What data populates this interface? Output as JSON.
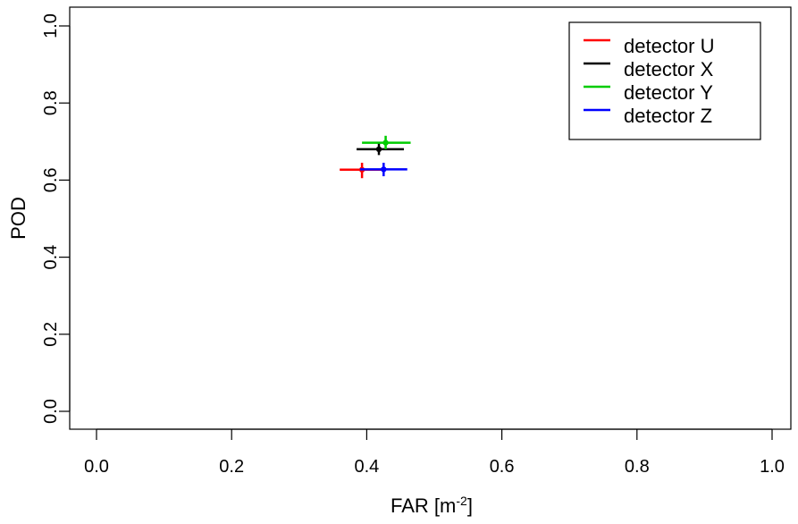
{
  "chart_data": {
    "type": "scatter",
    "title": "",
    "xlabel": "FAR [m",
    "xlabel_superscript": "-2",
    "xlabel_suffix": "]",
    "ylabel": "POD",
    "xlim": [
      0.0,
      1.0
    ],
    "ylim": [
      0.0,
      1.0
    ],
    "x_ticks": [
      "0.0",
      "0.2",
      "0.4",
      "0.6",
      "0.8",
      "1.0"
    ],
    "y_ticks": [
      "0.0",
      "0.2",
      "0.4",
      "0.6",
      "0.8",
      "1.0"
    ],
    "grid": false,
    "legend_position": "top-right",
    "series": [
      {
        "name": "detector U",
        "color": "#ff0000",
        "x": 0.393,
        "y": 0.627,
        "x_err": [
          0.36,
          0.425
        ],
        "y_err": [
          0.605,
          0.645
        ]
      },
      {
        "name": "detector X",
        "color": "#000000",
        "x": 0.418,
        "y": 0.68,
        "x_err": [
          0.385,
          0.455
        ],
        "y_err": [
          0.665,
          0.695
        ]
      },
      {
        "name": "detector Y",
        "color": "#00cc00",
        "x": 0.428,
        "y": 0.697,
        "x_err": [
          0.393,
          0.465
        ],
        "y_err": [
          0.68,
          0.715
        ]
      },
      {
        "name": "detector Z",
        "color": "#0000ff",
        "x": 0.425,
        "y": 0.628,
        "x_err": [
          0.39,
          0.46
        ],
        "y_err": [
          0.61,
          0.645
        ]
      }
    ]
  }
}
